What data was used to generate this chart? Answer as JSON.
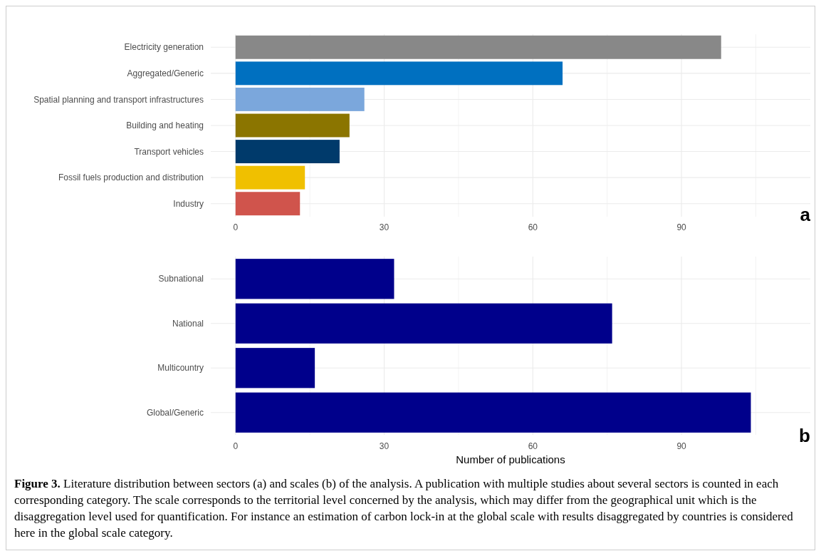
{
  "chart_data": [
    {
      "type": "bar",
      "orientation": "horizontal",
      "categories": [
        "Electricity generation",
        "Aggregated/Generic",
        "Spatial planning and transport infrastructures",
        "Building and heating",
        "Transport vehicles",
        "Fossil fuels production and distribution",
        "Industry"
      ],
      "values": [
        98,
        66,
        26,
        23,
        21,
        14,
        13
      ],
      "colors": [
        "#888888",
        "#0070c0",
        "#7ba7dc",
        "#8b7500",
        "#003a6b",
        "#f0c000",
        "#d0544c"
      ],
      "xlim": [
        -5,
        116
      ],
      "xticks": [
        0,
        {
          "value": 15,
          "label": null
        },
        30,
        {
          "value": 45,
          "label": null
        },
        60,
        {
          "value": 75,
          "label": null
        },
        90,
        {
          "value": 105,
          "label": null
        }
      ],
      "grid": true,
      "annotations": [
        "a"
      ]
    },
    {
      "type": "bar",
      "orientation": "horizontal",
      "categories": [
        "Subnational",
        "National",
        "Multicountry",
        "Global/Generic"
      ],
      "values": [
        32,
        76,
        16,
        104
      ],
      "color": "#00008b",
      "xlabel": "Number of publications",
      "xlim": [
        -5,
        116
      ],
      "xticks": [
        0,
        {
          "value": 15,
          "label": null
        },
        30,
        {
          "value": 45,
          "label": null
        },
        60,
        {
          "value": 75,
          "label": null
        },
        90,
        {
          "value": 105,
          "label": null
        }
      ],
      "grid": true,
      "annotations": [
        "b",
        "Figure 3. Literature distribution between sectors (a) and scales (b) of the analysis. A publication with multiple studies about several sectors is counted in each corresponding category. The scale corresponds to the territorial level concerned by the analysis, which may differ from the geographical unit which is the disaggregation level used for quantification. For instance an estimation of carbon lock-in at the global scale with results disaggregated by countries is considered here in the global scale category."
      ]
    }
  ]
}
